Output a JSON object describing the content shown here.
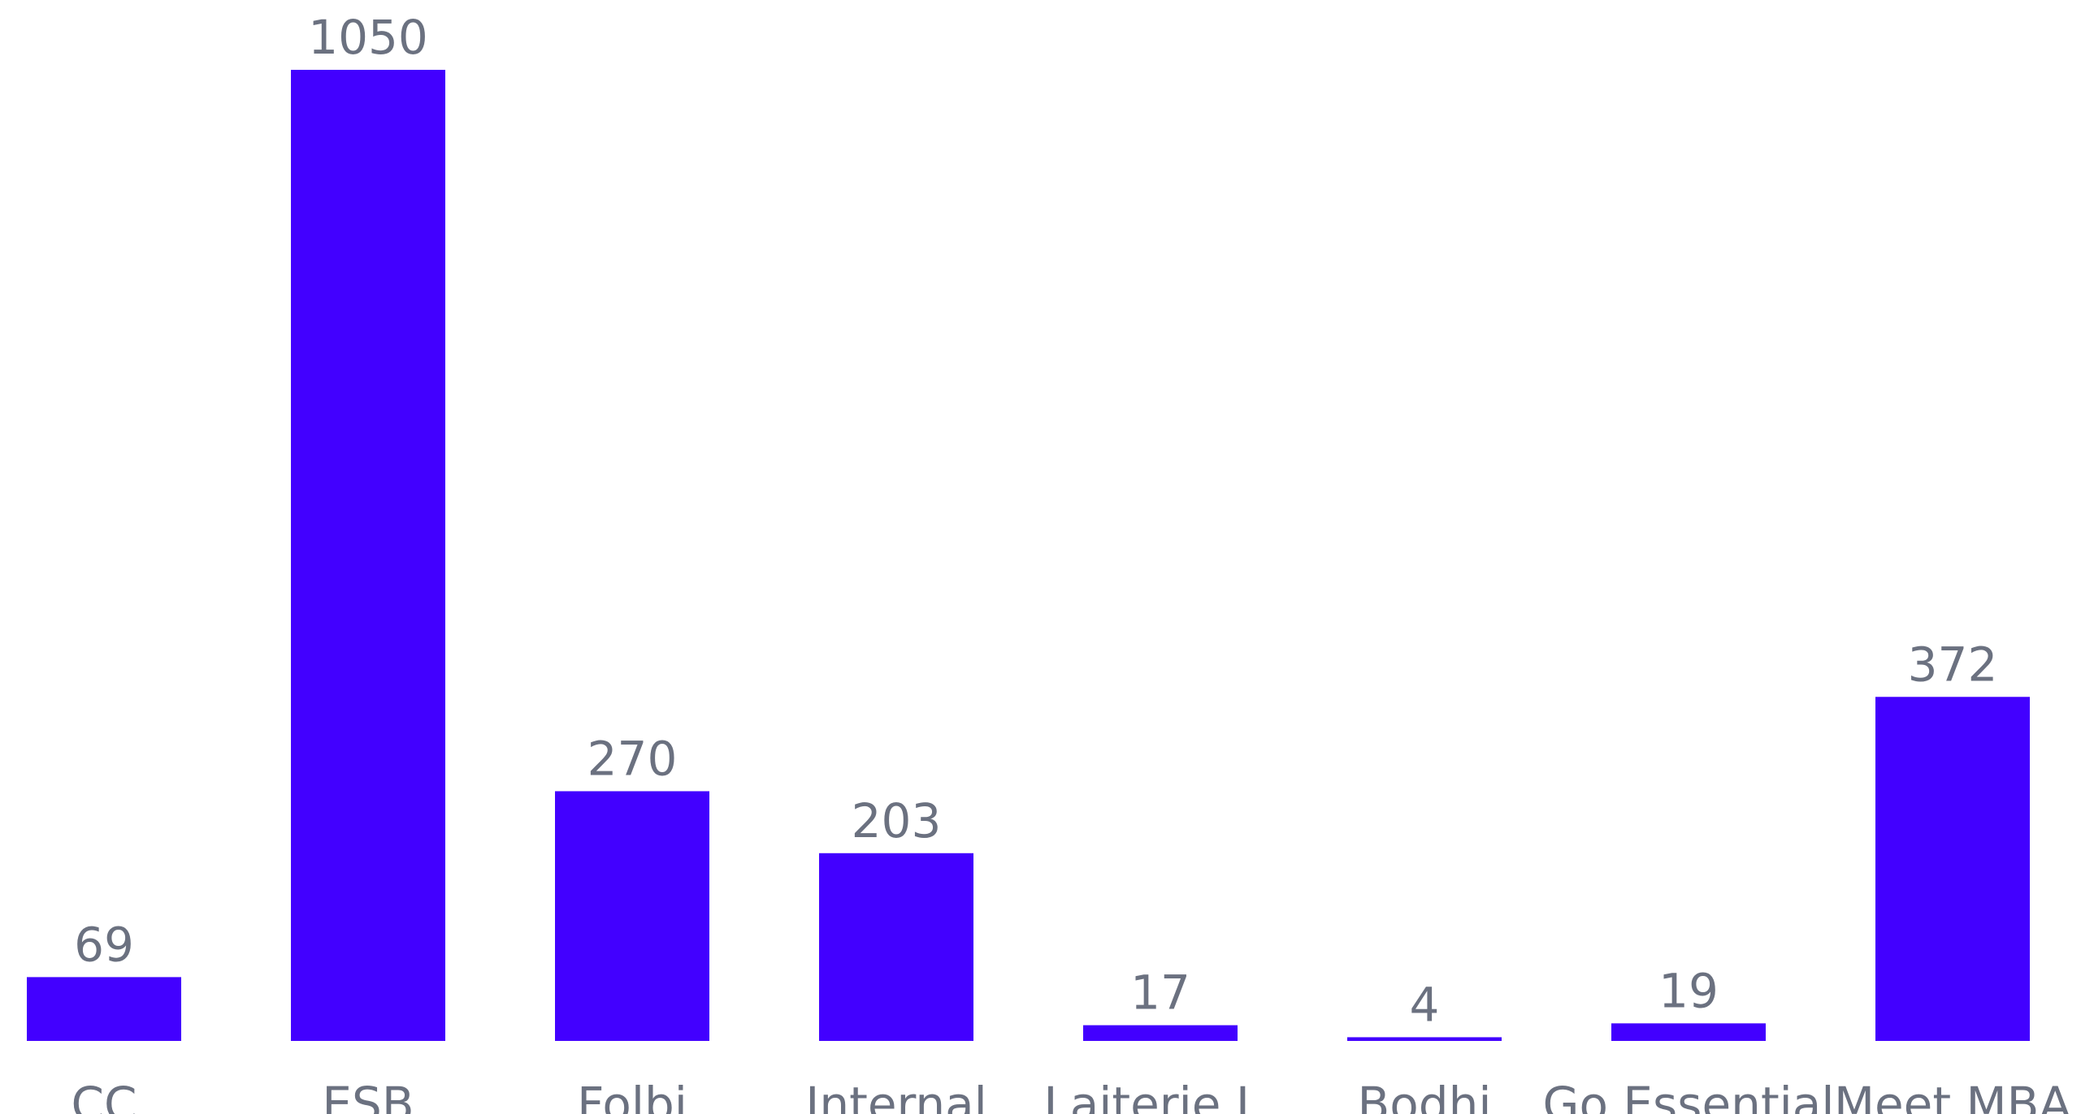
{
  "chart_data": {
    "type": "bar",
    "categories": [
      "CC",
      "ESB",
      "Folbi",
      "Internal",
      "Laiterie L.",
      "Bodhi",
      "Go Essential",
      "Meet.MBA"
    ],
    "values": [
      69,
      1050,
      270,
      203,
      17,
      4,
      19,
      372
    ],
    "title": "",
    "xlabel": "",
    "ylabel": "",
    "ylim": [
      0,
      1050
    ],
    "grid": false,
    "data_labels": true,
    "colors": {
      "bar": "#4200FF",
      "label": "#6B7180"
    }
  }
}
